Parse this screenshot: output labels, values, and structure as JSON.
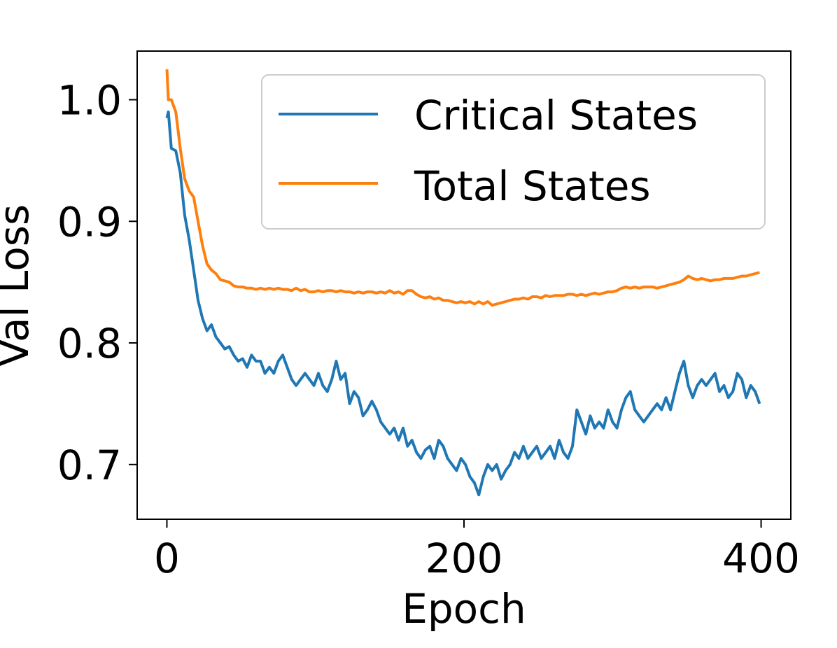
{
  "chart_data": {
    "type": "line",
    "title": "",
    "xlabel": "Epoch",
    "ylabel": "Val Loss",
    "xlim": [
      -20,
      420
    ],
    "ylim": [
      0.655,
      1.04
    ],
    "xticks": [
      {
        "value": 0,
        "label": "0"
      },
      {
        "value": 200,
        "label": "200"
      },
      {
        "value": 400,
        "label": "400"
      }
    ],
    "yticks": [
      {
        "value": 0.7,
        "label": "0.7"
      },
      {
        "value": 0.8,
        "label": "0.8"
      },
      {
        "value": 0.9,
        "label": "0.9"
      },
      {
        "value": 1.0,
        "label": "1.0"
      }
    ],
    "grid": false,
    "legend_position": "top-right",
    "series": [
      {
        "name": "Critical States",
        "color": "#1f77b4",
        "points": [
          [
            0,
            0.985
          ],
          [
            1,
            0.99
          ],
          [
            3,
            0.96
          ],
          [
            6,
            0.958
          ],
          [
            9,
            0.94
          ],
          [
            12,
            0.905
          ],
          [
            15,
            0.885
          ],
          [
            18,
            0.86
          ],
          [
            21,
            0.835
          ],
          [
            24,
            0.82
          ],
          [
            27,
            0.81
          ],
          [
            30,
            0.815
          ],
          [
            33,
            0.805
          ],
          [
            36,
            0.8
          ],
          [
            39,
            0.795
          ],
          [
            42,
            0.797
          ],
          [
            45,
            0.79
          ],
          [
            48,
            0.785
          ],
          [
            51,
            0.787
          ],
          [
            54,
            0.78
          ],
          [
            57,
            0.79
          ],
          [
            60,
            0.785
          ],
          [
            63,
            0.785
          ],
          [
            66,
            0.775
          ],
          [
            69,
            0.78
          ],
          [
            72,
            0.775
          ],
          [
            75,
            0.785
          ],
          [
            78,
            0.79
          ],
          [
            81,
            0.78
          ],
          [
            84,
            0.77
          ],
          [
            87,
            0.765
          ],
          [
            90,
            0.77
          ],
          [
            93,
            0.775
          ],
          [
            96,
            0.77
          ],
          [
            99,
            0.765
          ],
          [
            102,
            0.775
          ],
          [
            105,
            0.765
          ],
          [
            108,
            0.76
          ],
          [
            111,
            0.77
          ],
          [
            114,
            0.785
          ],
          [
            117,
            0.77
          ],
          [
            120,
            0.775
          ],
          [
            123,
            0.75
          ],
          [
            126,
            0.76
          ],
          [
            129,
            0.755
          ],
          [
            132,
            0.74
          ],
          [
            135,
            0.745
          ],
          [
            138,
            0.752
          ],
          [
            141,
            0.745
          ],
          [
            144,
            0.735
          ],
          [
            147,
            0.73
          ],
          [
            150,
            0.725
          ],
          [
            153,
            0.73
          ],
          [
            156,
            0.72
          ],
          [
            159,
            0.73
          ],
          [
            162,
            0.715
          ],
          [
            165,
            0.72
          ],
          [
            168,
            0.71
          ],
          [
            171,
            0.705
          ],
          [
            174,
            0.712
          ],
          [
            177,
            0.715
          ],
          [
            180,
            0.705
          ],
          [
            183,
            0.72
          ],
          [
            186,
            0.715
          ],
          [
            189,
            0.705
          ],
          [
            192,
            0.7
          ],
          [
            195,
            0.695
          ],
          [
            198,
            0.705
          ],
          [
            201,
            0.7
          ],
          [
            204,
            0.69
          ],
          [
            207,
            0.685
          ],
          [
            210,
            0.675
          ],
          [
            213,
            0.69
          ],
          [
            216,
            0.7
          ],
          [
            219,
            0.695
          ],
          [
            222,
            0.7
          ],
          [
            225,
            0.688
          ],
          [
            228,
            0.695
          ],
          [
            231,
            0.7
          ],
          [
            234,
            0.71
          ],
          [
            237,
            0.705
          ],
          [
            240,
            0.715
          ],
          [
            243,
            0.705
          ],
          [
            246,
            0.71
          ],
          [
            249,
            0.715
          ],
          [
            252,
            0.705
          ],
          [
            255,
            0.71
          ],
          [
            258,
            0.715
          ],
          [
            261,
            0.705
          ],
          [
            264,
            0.72
          ],
          [
            267,
            0.71
          ],
          [
            270,
            0.705
          ],
          [
            273,
            0.715
          ],
          [
            276,
            0.745
          ],
          [
            279,
            0.735
          ],
          [
            282,
            0.725
          ],
          [
            285,
            0.74
          ],
          [
            288,
            0.73
          ],
          [
            291,
            0.735
          ],
          [
            294,
            0.73
          ],
          [
            297,
            0.745
          ],
          [
            300,
            0.735
          ],
          [
            303,
            0.73
          ],
          [
            306,
            0.745
          ],
          [
            309,
            0.755
          ],
          [
            312,
            0.76
          ],
          [
            315,
            0.745
          ],
          [
            318,
            0.74
          ],
          [
            321,
            0.735
          ],
          [
            324,
            0.74
          ],
          [
            327,
            0.745
          ],
          [
            330,
            0.75
          ],
          [
            333,
            0.745
          ],
          [
            336,
            0.755
          ],
          [
            339,
            0.745
          ],
          [
            342,
            0.76
          ],
          [
            345,
            0.775
          ],
          [
            348,
            0.785
          ],
          [
            351,
            0.765
          ],
          [
            354,
            0.755
          ],
          [
            357,
            0.765
          ],
          [
            360,
            0.77
          ],
          [
            363,
            0.765
          ],
          [
            366,
            0.77
          ],
          [
            369,
            0.775
          ],
          [
            372,
            0.76
          ],
          [
            375,
            0.765
          ],
          [
            378,
            0.755
          ],
          [
            381,
            0.76
          ],
          [
            384,
            0.775
          ],
          [
            387,
            0.77
          ],
          [
            390,
            0.755
          ],
          [
            393,
            0.765
          ],
          [
            396,
            0.76
          ],
          [
            399,
            0.75
          ]
        ]
      },
      {
        "name": "Total States",
        "color": "#ff7f0e",
        "points": [
          [
            0,
            1.025
          ],
          [
            1,
            1.0
          ],
          [
            3,
            1.0
          ],
          [
            6,
            0.99
          ],
          [
            9,
            0.96
          ],
          [
            12,
            0.935
          ],
          [
            15,
            0.925
          ],
          [
            18,
            0.92
          ],
          [
            21,
            0.9
          ],
          [
            24,
            0.88
          ],
          [
            27,
            0.865
          ],
          [
            30,
            0.86
          ],
          [
            33,
            0.857
          ],
          [
            36,
            0.852
          ],
          [
            39,
            0.851
          ],
          [
            42,
            0.85
          ],
          [
            45,
            0.847
          ],
          [
            48,
            0.846
          ],
          [
            51,
            0.846
          ],
          [
            54,
            0.845
          ],
          [
            57,
            0.845
          ],
          [
            60,
            0.844
          ],
          [
            63,
            0.845
          ],
          [
            66,
            0.844
          ],
          [
            69,
            0.845
          ],
          [
            72,
            0.844
          ],
          [
            75,
            0.845
          ],
          [
            78,
            0.844
          ],
          [
            81,
            0.844
          ],
          [
            84,
            0.843
          ],
          [
            87,
            0.845
          ],
          [
            90,
            0.843
          ],
          [
            93,
            0.844
          ],
          [
            96,
            0.842
          ],
          [
            99,
            0.842
          ],
          [
            102,
            0.843
          ],
          [
            105,
            0.842
          ],
          [
            108,
            0.843
          ],
          [
            111,
            0.843
          ],
          [
            114,
            0.842
          ],
          [
            117,
            0.843
          ],
          [
            120,
            0.842
          ],
          [
            123,
            0.842
          ],
          [
            126,
            0.841
          ],
          [
            129,
            0.842
          ],
          [
            132,
            0.841
          ],
          [
            135,
            0.842
          ],
          [
            138,
            0.842
          ],
          [
            141,
            0.841
          ],
          [
            144,
            0.842
          ],
          [
            147,
            0.841
          ],
          [
            150,
            0.843
          ],
          [
            153,
            0.841
          ],
          [
            156,
            0.842
          ],
          [
            159,
            0.84
          ],
          [
            162,
            0.843
          ],
          [
            165,
            0.843
          ],
          [
            168,
            0.84
          ],
          [
            171,
            0.838
          ],
          [
            174,
            0.837
          ],
          [
            177,
            0.838
          ],
          [
            180,
            0.836
          ],
          [
            183,
            0.837
          ],
          [
            186,
            0.835
          ],
          [
            189,
            0.835
          ],
          [
            192,
            0.834
          ],
          [
            195,
            0.833
          ],
          [
            198,
            0.834
          ],
          [
            201,
            0.833
          ],
          [
            204,
            0.834
          ],
          [
            207,
            0.832
          ],
          [
            210,
            0.834
          ],
          [
            213,
            0.832
          ],
          [
            216,
            0.834
          ],
          [
            219,
            0.831
          ],
          [
            222,
            0.832
          ],
          [
            225,
            0.833
          ],
          [
            228,
            0.834
          ],
          [
            231,
            0.835
          ],
          [
            234,
            0.836
          ],
          [
            237,
            0.836
          ],
          [
            240,
            0.837
          ],
          [
            243,
            0.836
          ],
          [
            246,
            0.838
          ],
          [
            249,
            0.838
          ],
          [
            252,
            0.837
          ],
          [
            255,
            0.839
          ],
          [
            258,
            0.838
          ],
          [
            261,
            0.839
          ],
          [
            264,
            0.839
          ],
          [
            267,
            0.839
          ],
          [
            270,
            0.84
          ],
          [
            273,
            0.84
          ],
          [
            276,
            0.839
          ],
          [
            279,
            0.84
          ],
          [
            282,
            0.839
          ],
          [
            285,
            0.84
          ],
          [
            288,
            0.841
          ],
          [
            291,
            0.84
          ],
          [
            294,
            0.841
          ],
          [
            297,
            0.842
          ],
          [
            300,
            0.842
          ],
          [
            303,
            0.843
          ],
          [
            306,
            0.845
          ],
          [
            309,
            0.846
          ],
          [
            312,
            0.845
          ],
          [
            315,
            0.846
          ],
          [
            318,
            0.845
          ],
          [
            321,
            0.846
          ],
          [
            324,
            0.846
          ],
          [
            327,
            0.846
          ],
          [
            330,
            0.845
          ],
          [
            333,
            0.846
          ],
          [
            336,
            0.847
          ],
          [
            339,
            0.848
          ],
          [
            342,
            0.849
          ],
          [
            345,
            0.85
          ],
          [
            348,
            0.852
          ],
          [
            351,
            0.855
          ],
          [
            354,
            0.853
          ],
          [
            357,
            0.852
          ],
          [
            360,
            0.853
          ],
          [
            363,
            0.852
          ],
          [
            366,
            0.851
          ],
          [
            369,
            0.852
          ],
          [
            372,
            0.852
          ],
          [
            375,
            0.853
          ],
          [
            378,
            0.853
          ],
          [
            381,
            0.853
          ],
          [
            384,
            0.854
          ],
          [
            387,
            0.855
          ],
          [
            390,
            0.855
          ],
          [
            393,
            0.856
          ],
          [
            396,
            0.857
          ],
          [
            399,
            0.858
          ]
        ]
      }
    ]
  }
}
